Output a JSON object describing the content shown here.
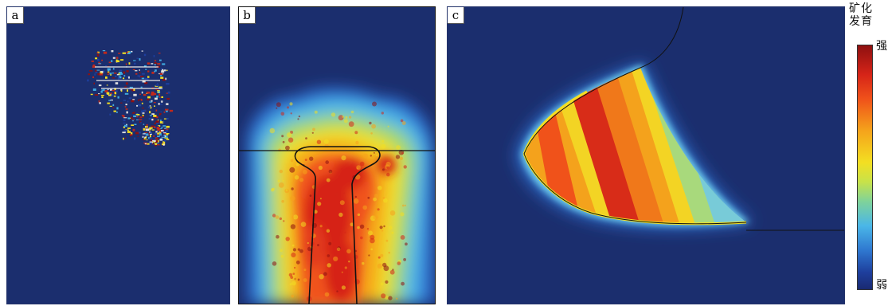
{
  "panels": [
    {
      "label": "a"
    },
    {
      "label": "b"
    },
    {
      "label": "c"
    }
  ],
  "legend": {
    "title_line1": "矿化",
    "title_line2": "发育",
    "strong": "强",
    "weak": "弱"
  },
  "colors": {
    "background": "#1b2e6e",
    "strong": "#8e1010",
    "mid": "#f3df22",
    "weak": "#1a2a72"
  }
}
